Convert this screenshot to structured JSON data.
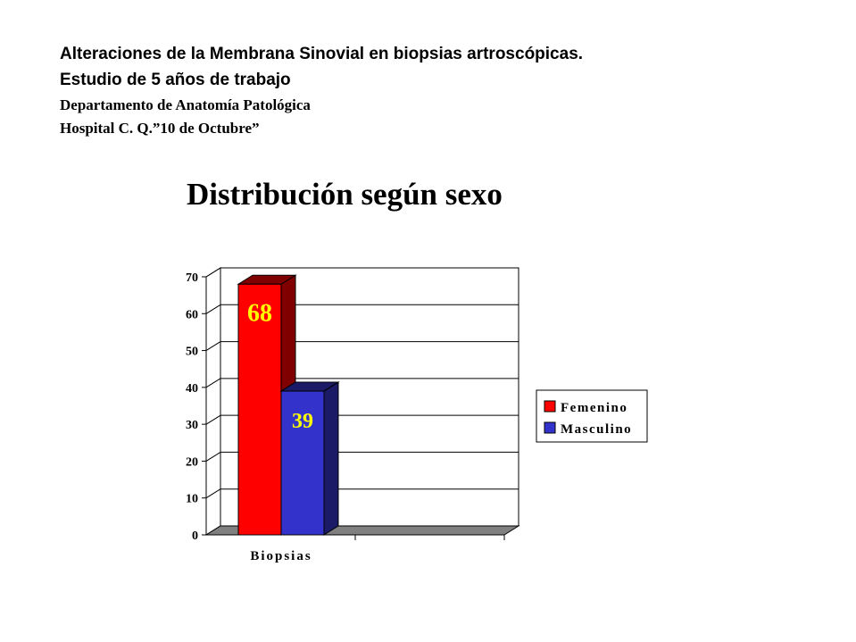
{
  "header": {
    "line1": "Alteraciones de la Membrana Sinovial en biopsias artroscópicas.",
    "line2": "Estudio de 5 años de trabajo",
    "line3": "Departamento de Anatomía Patológica",
    "line4": "Hospital C. Q.”10 de Octubre”"
  },
  "chart_data": {
    "type": "bar",
    "title": "Distribución según sexo",
    "categories": [
      "Biopsias"
    ],
    "series": [
      {
        "name": "Femenino",
        "values": [
          68
        ],
        "color": "#ff0000",
        "side_color": "#800000"
      },
      {
        "name": "Masculino",
        "values": [
          39
        ],
        "color": "#3333cc",
        "side_color": "#1a1a66"
      }
    ],
    "data_labels": [
      "68",
      "39"
    ],
    "data_label_colors": [
      "#ffff00",
      "#ffff00"
    ],
    "yticks": [
      "0",
      "10",
      "20",
      "30",
      "40",
      "50",
      "60",
      "70"
    ],
    "ylim": [
      0,
      70
    ],
    "grid": true,
    "legend": "right",
    "style": "3d",
    "floor_color": "#808080"
  }
}
